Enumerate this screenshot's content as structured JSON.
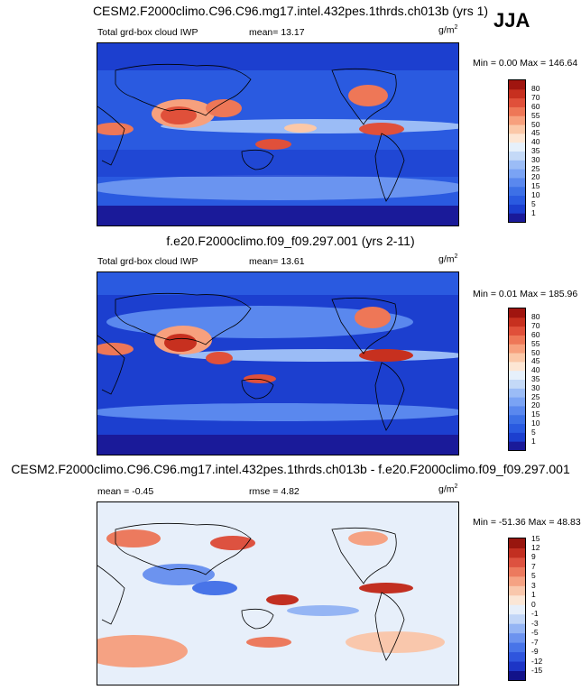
{
  "season": "JJA",
  "colors": {
    "abs_scale": [
      "#1a1a99",
      "#1c3fcf",
      "#2a5ae0",
      "#3d70e6",
      "#5a88ee",
      "#7aa3f4",
      "#9bbcf6",
      "#c4d9f7",
      "#e6f0fb",
      "#fde6d4",
      "#fbc8a8",
      "#f7a07d",
      "#ee7757",
      "#e0503a",
      "#c7301f",
      "#a0150f"
    ],
    "diff_scale": [
      "#12128a",
      "#1d35c6",
      "#2f55dd",
      "#4874e8",
      "#6c93ef",
      "#95b5f4",
      "#c2d6f7",
      "#e7effa",
      "#fbe6d6",
      "#f9c7ac",
      "#f5a283",
      "#ec7a5e",
      "#dd5240",
      "#c22f21",
      "#98160e"
    ]
  },
  "chart_data": [
    {
      "type": "heatmap",
      "title": "CESM2.F2000climo.C96.C96.mg17.intel.432pes.1thrds.ch013b (yrs 1)",
      "variable": "Total grd-box cloud IWP",
      "mean_label": "mean=",
      "mean": "13.17",
      "units": "g/m",
      "units_exp": "2",
      "min_label": "Min =",
      "min": "0.00",
      "max_label": "Max =",
      "max": "146.64",
      "levels": [
        "1",
        "5",
        "10",
        "15",
        "20",
        "25",
        "30",
        "35",
        "40",
        "45",
        "50",
        "55",
        "60",
        "70",
        "80"
      ]
    },
    {
      "type": "heatmap",
      "title": "f.e20.F2000climo.f09_f09.297.001 (yrs 2-11)",
      "variable": "Total grd-box cloud IWP",
      "mean_label": "mean=",
      "mean": "13.61",
      "units": "g/m",
      "units_exp": "2",
      "min_label": "Min =",
      "min": "0.01",
      "max_label": "Max =",
      "max": "185.96",
      "levels": [
        "1",
        "5",
        "10",
        "15",
        "20",
        "25",
        "30",
        "35",
        "40",
        "45",
        "50",
        "55",
        "60",
        "70",
        "80"
      ]
    },
    {
      "type": "heatmap",
      "title": "CESM2.F2000climo.C96.C96.mg17.intel.432pes.1thrds.ch013b - f.e20.F2000climo.f09_f09.297.001",
      "mean_label": "mean =",
      "mean": "-0.45",
      "rmse_label": "rmse =",
      "rmse": "4.82",
      "units": "g/m",
      "units_exp": "2",
      "min_label": "Min =",
      "min": "-51.36",
      "max_label": "Max =",
      "max": "48.83",
      "levels": [
        "-15",
        "-12",
        "-9",
        "-7",
        "-5",
        "-3",
        "-1",
        "0",
        "1",
        "3",
        "5",
        "7",
        "9",
        "12",
        "15"
      ]
    }
  ]
}
